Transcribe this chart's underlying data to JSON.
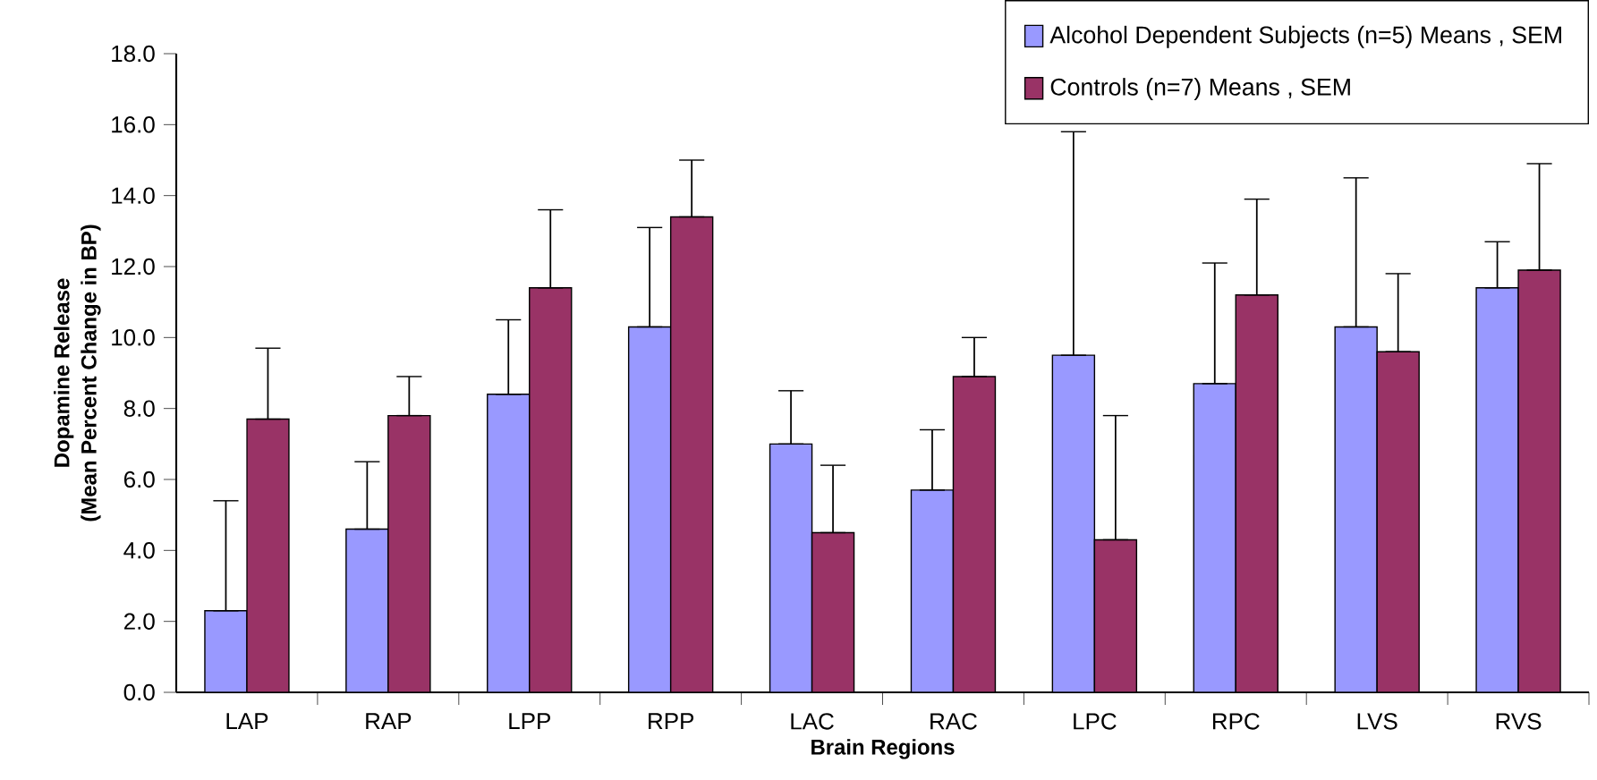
{
  "chart_data": {
    "type": "bar",
    "xlabel": "Brain Regions",
    "ylabel": "Dopamine Release\n(Mean Percent Change in BP)",
    "categories": [
      "LAP",
      "RAP",
      "LPP",
      "RPP",
      "LAC",
      "RAC",
      "LPC",
      "RPC",
      "LVS",
      "RVS"
    ],
    "series": [
      {
        "name": "Alcohol Dependent Subjects  (n=5) Means , SEM",
        "color": "#9999ff",
        "values": [
          2.3,
          4.6,
          8.4,
          10.3,
          7.0,
          5.7,
          9.5,
          8.7,
          10.3,
          11.4
        ],
        "errors": [
          [
            2.3,
            5.4
          ],
          [
            4.6,
            6.5
          ],
          [
            8.4,
            10.5
          ],
          [
            10.3,
            13.1
          ],
          [
            7.0,
            8.5
          ],
          [
            5.7,
            7.4
          ],
          [
            9.5,
            15.8
          ],
          [
            8.7,
            12.1
          ],
          [
            10.3,
            14.5
          ],
          [
            11.4,
            12.7
          ]
        ]
      },
      {
        "name": "Controls  (n=7) Means , SEM",
        "color": "#993366",
        "values": [
          7.7,
          7.8,
          11.4,
          13.4,
          4.5,
          8.9,
          4.3,
          11.2,
          9.6,
          11.9
        ],
        "errors": [
          [
            7.7,
            9.7
          ],
          [
            7.8,
            8.9
          ],
          [
            11.4,
            13.6
          ],
          [
            13.4,
            15.0
          ],
          [
            4.5,
            6.4
          ],
          [
            8.9,
            10.0
          ],
          [
            4.3,
            7.8
          ],
          [
            11.2,
            13.9
          ],
          [
            9.6,
            11.8
          ],
          [
            11.9,
            14.9
          ]
        ]
      }
    ],
    "ylim": [
      0,
      18
    ],
    "yticks": [
      {
        "value": 0,
        "label": "0.0"
      },
      {
        "value": 2,
        "label": "2.0"
      },
      {
        "value": 4,
        "label": "4.0"
      },
      {
        "value": 6,
        "label": "6.0"
      },
      {
        "value": 8,
        "label": "8.0"
      },
      {
        "value": 10,
        "label": "10.0"
      },
      {
        "value": 12,
        "label": "12.0"
      },
      {
        "value": 14,
        "label": "14.0"
      },
      {
        "value": 16,
        "label": "16.0"
      },
      {
        "value": 18,
        "label": "18.0"
      }
    ],
    "grid": false,
    "legend": "top right"
  }
}
